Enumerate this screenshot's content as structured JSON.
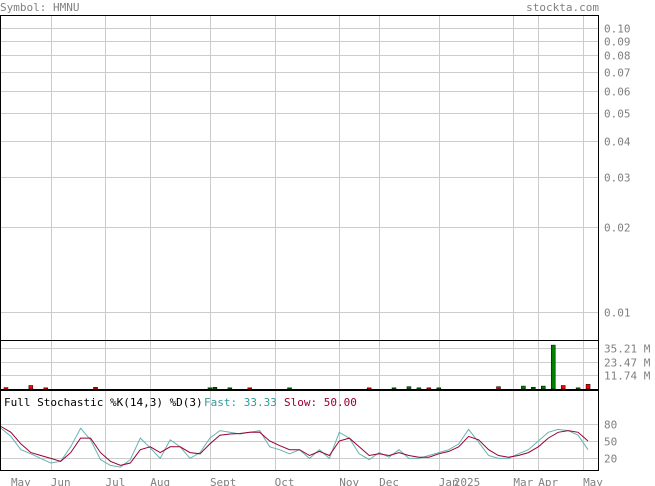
{
  "header": {
    "symbol_label": "Symbol: HMNU",
    "site": "stockta.com"
  },
  "colors": {
    "grid": "#cccccc",
    "frame": "#000000",
    "label": "#808080",
    "volume_up": "#008000",
    "volume_down": "#ff0000",
    "fast_line": "#66b2b2",
    "slow_line": "#990033",
    "fast_label": "#339999",
    "slow_label": "#990033"
  },
  "chart_data": [
    {
      "type": "line",
      "title": "",
      "y_scale": "log",
      "ylim": [
        0.008,
        0.11
      ],
      "y_ticks": [
        {
          "value": 0.1,
          "label": "0.10"
        },
        {
          "value": 0.09,
          "label": "0.09"
        },
        {
          "value": 0.08,
          "label": "0.08"
        },
        {
          "value": 0.07,
          "label": "0.07"
        },
        {
          "value": 0.06,
          "label": "0.06"
        },
        {
          "value": 0.05,
          "label": "0.05"
        },
        {
          "value": 0.04,
          "label": "0.04"
        },
        {
          "value": 0.03,
          "label": "0.03"
        },
        {
          "value": 0.02,
          "label": "0.02"
        },
        {
          "value": 0.01,
          "label": "0.01"
        }
      ],
      "grid": true,
      "series": []
    },
    {
      "type": "bar",
      "title": "",
      "ylabel": "",
      "ylim": [
        0,
        41
      ],
      "y_ticks": [
        {
          "value": 35.21,
          "label": "35.21 M"
        },
        {
          "value": 23.47,
          "label": "23.47 M"
        },
        {
          "value": 11.74,
          "label": "11.74 M"
        }
      ],
      "x": [
        1,
        6,
        9,
        19,
        42,
        43,
        46,
        50,
        58,
        74,
        79,
        82,
        84,
        86,
        88,
        100,
        105,
        107,
        109,
        111,
        113,
        116,
        118
      ],
      "values": [
        1.2,
        3.0,
        1.0,
        1.5,
        1.0,
        1.5,
        1.0,
        1.0,
        1.0,
        1.0,
        1.0,
        2.0,
        1.0,
        1.0,
        1.0,
        2.0,
        2.5,
        1.5,
        2.5,
        37.5,
        3.0,
        1.0,
        4.0
      ],
      "bar_direction": [
        "down",
        "down",
        "down",
        "down",
        "up",
        "up",
        "up",
        "down",
        "up",
        "down",
        "up",
        "up",
        "up",
        "down",
        "up",
        "down",
        "up",
        "up",
        "up",
        "up",
        "down",
        "up",
        "down"
      ]
    },
    {
      "type": "line",
      "title": "Full Stochastic %K(14,3) %D(3)",
      "ylim": [
        0,
        100
      ],
      "y_ticks": [
        {
          "value": 80,
          "label": "80"
        },
        {
          "value": 50,
          "label": "50"
        },
        {
          "value": 20,
          "label": "20"
        }
      ],
      "x": [
        0,
        2,
        4,
        6,
        8,
        10,
        12,
        14,
        16,
        18,
        20,
        22,
        24,
        26,
        28,
        30,
        32,
        34,
        36,
        38,
        40,
        42,
        44,
        46,
        48,
        50,
        52,
        54,
        56,
        58,
        60,
        62,
        64,
        66,
        68,
        70,
        72,
        74,
        76,
        78,
        80,
        82,
        84,
        86,
        88,
        90,
        92,
        94,
        96,
        98,
        100,
        102,
        104,
        106,
        108,
        110,
        112,
        114,
        116,
        118
      ],
      "series": [
        {
          "name": "Fast",
          "last_label": "Fast: 33.33",
          "values": [
            72,
            58,
            35,
            28,
            20,
            12,
            15,
            40,
            72,
            52,
            18,
            8,
            5,
            18,
            55,
            38,
            20,
            52,
            40,
            20,
            30,
            55,
            68,
            65,
            62,
            65,
            68,
            40,
            35,
            28,
            35,
            20,
            35,
            20,
            65,
            55,
            28,
            18,
            30,
            22,
            35,
            20,
            20,
            25,
            30,
            35,
            45,
            70,
            48,
            25,
            20,
            20,
            28,
            35,
            50,
            65,
            70,
            68,
            60,
            35
          ]
        },
        {
          "name": "Slow",
          "last_label": "Slow: 50.00",
          "values": [
            75,
            65,
            45,
            30,
            25,
            20,
            15,
            30,
            55,
            55,
            30,
            15,
            8,
            12,
            35,
            40,
            30,
            40,
            40,
            30,
            28,
            45,
            60,
            62,
            63,
            65,
            65,
            50,
            42,
            35,
            35,
            25,
            32,
            25,
            50,
            55,
            40,
            25,
            28,
            25,
            30,
            25,
            22,
            22,
            28,
            32,
            40,
            58,
            52,
            35,
            25,
            22,
            25,
            30,
            40,
            55,
            65,
            68,
            65,
            50
          ]
        }
      ]
    }
  ],
  "x_axis": {
    "labels": [
      {
        "x": 2,
        "text": "May"
      },
      {
        "x": 10,
        "text": "Jun"
      },
      {
        "x": 21,
        "text": "Jul"
      },
      {
        "x": 30,
        "text": "Aug"
      },
      {
        "x": 42,
        "text": "Sept"
      },
      {
        "x": 55,
        "text": "Oct"
      },
      {
        "x": 68,
        "text": "Nov"
      },
      {
        "x": 76,
        "text": "Dec"
      },
      {
        "x": 88,
        "text": "Jan"
      },
      {
        "x": 91,
        "text": "2025"
      },
      {
        "x": 103,
        "text": "Mar"
      },
      {
        "x": 108,
        "text": "Apr"
      },
      {
        "x": 117,
        "text": "May"
      }
    ],
    "gridlines": [
      10,
      21,
      30,
      42,
      55,
      68,
      76,
      88,
      103,
      108,
      117
    ]
  }
}
